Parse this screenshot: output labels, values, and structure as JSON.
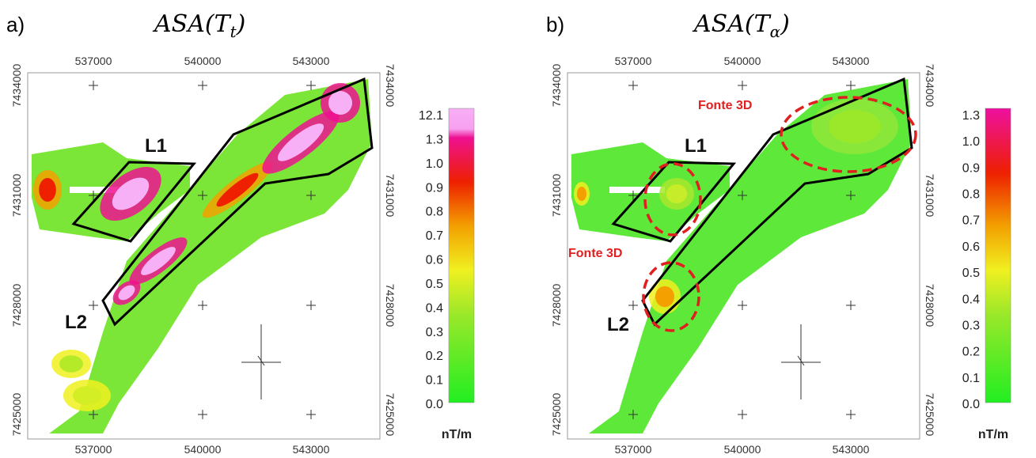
{
  "panels": [
    {
      "label": "a)",
      "title": {
        "base": "ASA(T",
        "sub": "t",
        "close": ")"
      },
      "xticks": [
        "537000",
        "540000",
        "543000"
      ],
      "yticks": [
        "7434000",
        "7431000",
        "7428000",
        "7425000"
      ],
      "annotations": [
        "L1",
        "L2"
      ],
      "colorbar": {
        "ticks": [
          "12.1",
          "1.3",
          "1.0",
          "0.9",
          "0.8",
          "0.7",
          "0.6",
          "0.5",
          "0.4",
          "0.3",
          "0.2",
          "0.1",
          "0.0"
        ],
        "unit": "nT/m"
      }
    },
    {
      "label": "b)",
      "title": {
        "base": "ASA(T",
        "sub": "α",
        "close": ")"
      },
      "xticks": [
        "537000",
        "540000",
        "543000"
      ],
      "yticks": [
        "7434000",
        "7431000",
        "7428000",
        "7425000"
      ],
      "annotations": [
        "L1",
        "L2",
        "Fonte 3D",
        "Fonte 3D"
      ],
      "colorbar": {
        "ticks": [
          "1.3",
          "1.0",
          "0.9",
          "0.8",
          "0.7",
          "0.6",
          "0.5",
          "0.4",
          "0.3",
          "0.2",
          "0.1",
          "0.0"
        ],
        "unit": "nT/m"
      }
    }
  ]
}
